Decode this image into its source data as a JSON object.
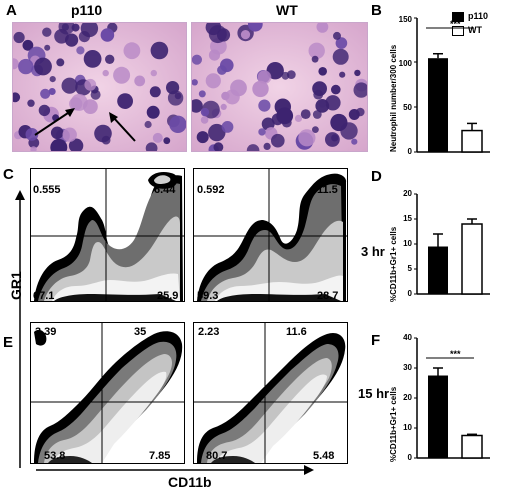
{
  "panel_A": {
    "letter": "A",
    "left_title": "p110",
    "right_title": "WT"
  },
  "panel_B": {
    "letter": "B",
    "ylabel": "Neutrophil number/300 cells",
    "legend": [
      "p110",
      "WT"
    ],
    "significance": "***",
    "chart_data": {
      "type": "bar",
      "categories": [
        "p110",
        "WT"
      ],
      "values": [
        105,
        24
      ],
      "errors": [
        5,
        8
      ],
      "ylim": [
        0,
        150
      ],
      "yticks": [
        0,
        50,
        100,
        150
      ],
      "colors": [
        "#000000",
        "#ffffff"
      ]
    }
  },
  "panel_C": {
    "letter": "C",
    "time": "3 hr",
    "left": {
      "ul": "0.555",
      "ur": "6.44",
      "ll": "67.1",
      "lr": "25.9"
    },
    "right": {
      "ul": "0.592",
      "ur": "11.5",
      "ll": "59.3",
      "lr": "28.7"
    }
  },
  "panel_D": {
    "letter": "D",
    "ylabel": "%CD11b+Gr1+ cells",
    "chart_data": {
      "type": "bar",
      "categories": [
        "p110",
        "WT"
      ],
      "values": [
        9.5,
        14
      ],
      "errors": [
        2.5,
        1
      ],
      "ylim": [
        0,
        20
      ],
      "yticks": [
        0,
        5,
        10,
        15,
        20
      ],
      "colors": [
        "#000000",
        "#ffffff"
      ]
    }
  },
  "panel_E": {
    "letter": "E",
    "time": "15 hr",
    "left": {
      "ul": "3.39",
      "ur": "35",
      "ll": "53.8",
      "lr": "7.85"
    },
    "right": {
      "ul": "2.23",
      "ur": "11.6",
      "ll": "80.7",
      "lr": "5.48"
    }
  },
  "panel_F": {
    "letter": "F",
    "ylabel": "%CD11b+Gr1+ cells",
    "significance": "***",
    "chart_data": {
      "type": "bar",
      "categories": [
        "p110",
        "WT"
      ],
      "values": [
        27.5,
        7.5
      ],
      "errors": [
        2.5,
        0.4
      ],
      "ylim": [
        0,
        40
      ],
      "yticks": [
        0,
        10,
        20,
        30,
        40
      ],
      "colors": [
        "#000000",
        "#ffffff"
      ]
    }
  },
  "axes": {
    "y": "GR1",
    "x": "CD11b"
  },
  "colors": {
    "stain_bg": "#e6bcd9",
    "nucleus": "#4a2c8a",
    "contour_dark": "#1a1a1a"
  }
}
